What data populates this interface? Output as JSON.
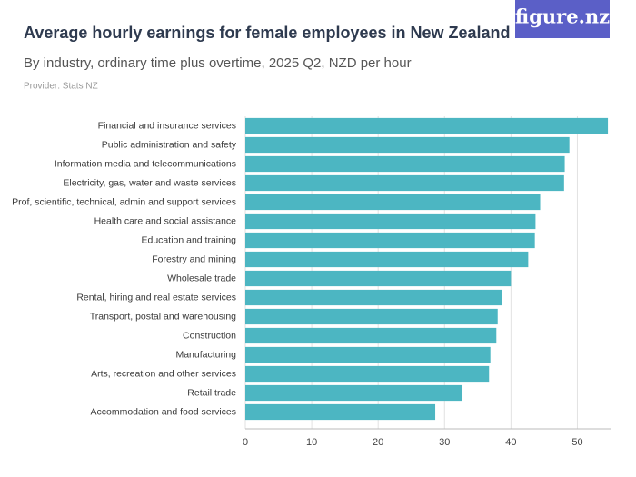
{
  "logo": "figure.nz",
  "chart_data": {
    "type": "hbar",
    "title": "Average hourly earnings for female employees in New Zealand",
    "subtitle": "By industry, ordinary time plus overtime, 2025 Q2, NZD per hour",
    "provider": "Provider: Stats NZ",
    "categories": [
      "Financial and insurance services",
      "Public administration and safety",
      "Information media and telecommunications",
      "Electricity, gas, water and waste services",
      "Prof, scientific, technical, admin and support services",
      "Health care and social assistance",
      "Education and training",
      "Forestry and mining",
      "Wholesale trade",
      "Rental, hiring and real estate services",
      "Transport, postal and warehousing",
      "Construction",
      "Manufacturing",
      "Arts, recreation and other services",
      "Retail trade",
      "Accommodation and food services"
    ],
    "values": [
      54.6,
      48.8,
      48.1,
      48.0,
      44.4,
      43.7,
      43.6,
      42.6,
      40.0,
      38.7,
      38.0,
      37.8,
      36.9,
      36.7,
      32.7,
      28.6
    ],
    "color": "#4cb6c2",
    "xlim": [
      0,
      55
    ],
    "xticks": [
      0,
      10,
      20,
      30,
      40,
      50
    ],
    "grid": true
  }
}
